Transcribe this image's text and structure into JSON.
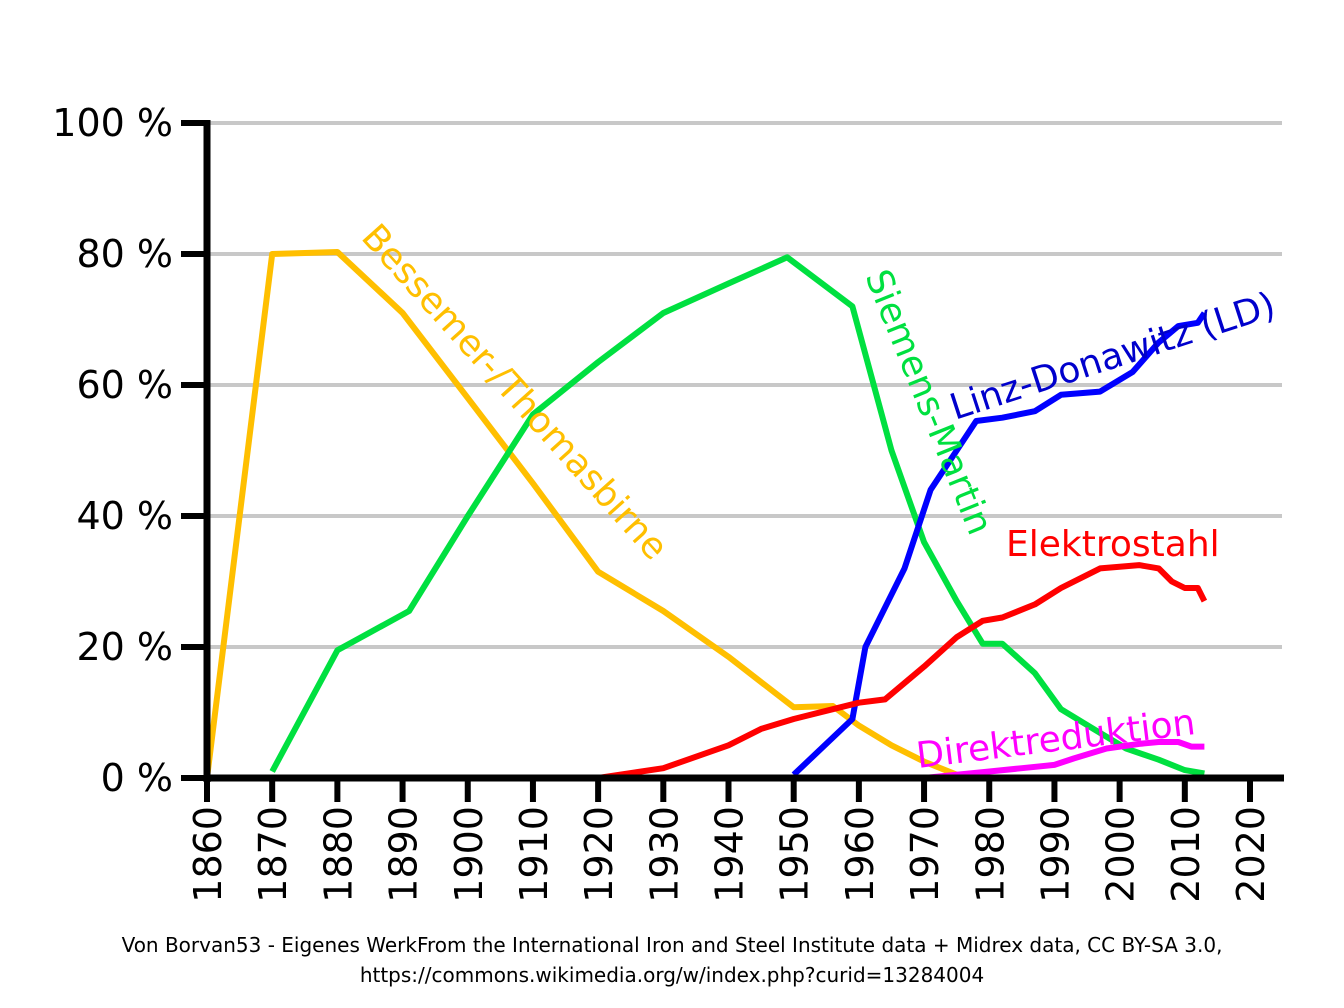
{
  "chart_data": {
    "type": "line",
    "title": "",
    "xlabel": "",
    "ylabel": "",
    "xlim": [
      1860,
      2020
    ],
    "ylim": [
      0,
      100
    ],
    "grid": "horizontal",
    "legend": "none (labels placed on lines)",
    "y_ticks": [
      "0 %",
      "20 %",
      "40 %",
      "60 %",
      "80 %",
      "100 %"
    ],
    "y_tick_values": [
      0,
      20,
      40,
      60,
      80,
      100
    ],
    "x_ticks": [
      "1860",
      "1870",
      "1880",
      "1890",
      "1900",
      "1910",
      "1920",
      "1930",
      "1940",
      "1950",
      "1960",
      "1970",
      "1980",
      "1990",
      "2000",
      "2010",
      "2020"
    ],
    "x_tick_values": [
      1860,
      1870,
      1880,
      1890,
      1900,
      1910,
      1920,
      1930,
      1940,
      1950,
      1960,
      1970,
      1980,
      1990,
      2000,
      2010,
      2020
    ],
    "series": [
      {
        "name": "Bessemer-/Thomasbirne",
        "color": "#ffbf00",
        "x": [
          1860,
          1870,
          1880,
          1890,
          1900,
          1910,
          1920,
          1930,
          1940,
          1950,
          1956,
          1960,
          1965,
          1970,
          1975
        ],
        "y": [
          0,
          80,
          80.3,
          71,
          58,
          45,
          31.5,
          25.5,
          18.5,
          10.8,
          11,
          8,
          5,
          2.5,
          0.5
        ]
      },
      {
        "name": "Siemens-Martin",
        "color": "#00e040",
        "x": [
          1870,
          1880,
          1891,
          1900,
          1910,
          1920,
          1930,
          1940,
          1949,
          1959,
          1965,
          1970,
          1975,
          1979,
          1982,
          1987,
          1991,
          1996,
          2001,
          2006,
          2010,
          2013
        ],
        "y": [
          1,
          19.5,
          25.5,
          40,
          55.5,
          63.5,
          71,
          75.5,
          79.5,
          72,
          50,
          36,
          27,
          20.5,
          20.5,
          16,
          10.5,
          7.5,
          4.5,
          2.8,
          1.2,
          0.7
        ]
      },
      {
        "name": "Linz-Donawitz (LD)",
        "color": "#0000ff",
        "x": [
          1950,
          1959,
          1961,
          1967,
          1971,
          1975,
          1978,
          1982,
          1987,
          1991,
          1997,
          2002,
          2006,
          2009,
          2012,
          2013
        ],
        "y": [
          0.5,
          9,
          20,
          32,
          44,
          50,
          54.5,
          55,
          56,
          58.5,
          59,
          62,
          66.5,
          69,
          69.5,
          71
        ]
      },
      {
        "name": "Elektrostahl",
        "color": "#ff0000",
        "x": [
          1920,
          1930,
          1940,
          1945,
          1950,
          1956,
          1960,
          1964,
          1970,
          1975,
          1979,
          1982,
          1987,
          1991,
          1997,
          2003,
          2006,
          2008,
          2010,
          2012,
          2013
        ],
        "y": [
          0,
          1.5,
          5,
          7.5,
          9,
          10.5,
          11.5,
          12,
          17,
          21.5,
          24,
          24.5,
          26.5,
          29,
          32,
          32.5,
          32,
          30,
          29,
          29,
          27
        ]
      },
      {
        "name": "Direktreduktion",
        "color": "#ff00ff",
        "x": [
          1970,
          1975,
          1980,
          1985,
          1990,
          1993,
          1998,
          2003,
          2006,
          2009,
          2011,
          2013
        ],
        "y": [
          0,
          0.5,
          1,
          1.5,
          2,
          3,
          4.5,
          5.2,
          5.5,
          5.5,
          4.8,
          4.8
        ]
      }
    ]
  },
  "labels": {
    "bessemer": "Bessemer-/Thomasbirne",
    "siemens": "Siemens-Martin",
    "ld": "Linz-Donawitz (LD)",
    "elektro": "Elektrostahl",
    "direkt": "Direktreduktion"
  },
  "credit": {
    "line1": "Von Borvan53 - Eigenes WerkFrom the International Iron and Steel Institute data + Midrex data, CC BY-SA 3.0,",
    "line2": "https://commons.wikimedia.org/w/index.php?curid=13284004"
  }
}
